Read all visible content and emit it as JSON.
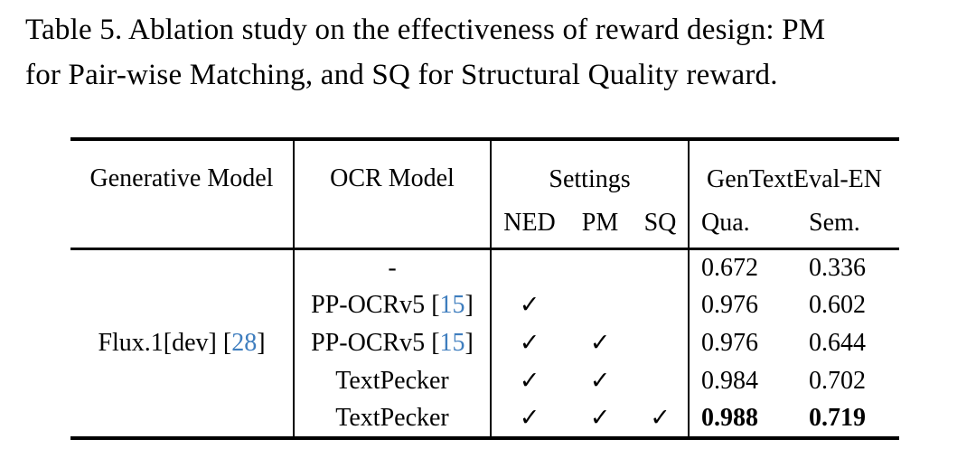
{
  "caption": {
    "lines": [
      "Table 5. Ablation study on the effectiveness of reward design: PM",
      "for Pair-wise Matching, and SQ for Structural Quality reward."
    ]
  },
  "colors": {
    "citation_link": "#3E7DBE",
    "ink": "#000000",
    "background": "#FFFFFF"
  },
  "table": {
    "header": {
      "generative_model": "Generative Model",
      "ocr_model": "OCR Model",
      "settings_group": "Settings",
      "eval_group": "GenTextEval-EN",
      "ned": "NED",
      "pm": "PM",
      "sq": "SQ",
      "qua": "Qua.",
      "sem": "Sem."
    },
    "generative": {
      "label": "Flux.1[dev]",
      "bracket_open": " [",
      "cite": "28",
      "bracket_close": "]"
    },
    "rows": [
      {
        "ocr_label": "-",
        "bracket_open": "",
        "cite": "",
        "bracket_close": "",
        "ned": "",
        "pm": "",
        "sq": "",
        "qua": "0.672",
        "sem": "0.336"
      },
      {
        "ocr_label": "PP-OCRv5",
        "bracket_open": " [",
        "cite": "15",
        "bracket_close": "]",
        "ned": "✓",
        "pm": "",
        "sq": "",
        "qua": "0.976",
        "sem": "0.602"
      },
      {
        "ocr_label": "PP-OCRv5",
        "bracket_open": " [",
        "cite": "15",
        "bracket_close": "]",
        "ned": "✓",
        "pm": "✓",
        "sq": "",
        "qua": "0.976",
        "sem": "0.644"
      },
      {
        "ocr_label": "TextPecker",
        "bracket_open": "",
        "cite": "",
        "bracket_close": "",
        "ned": "✓",
        "pm": "✓",
        "sq": "",
        "qua": "0.984",
        "sem": "0.702"
      },
      {
        "ocr_label": "TextPecker",
        "bracket_open": "",
        "cite": "",
        "bracket_close": "",
        "ned": "✓",
        "pm": "✓",
        "sq": "✓",
        "qua": "0.988",
        "sem": "0.719"
      }
    ]
  }
}
